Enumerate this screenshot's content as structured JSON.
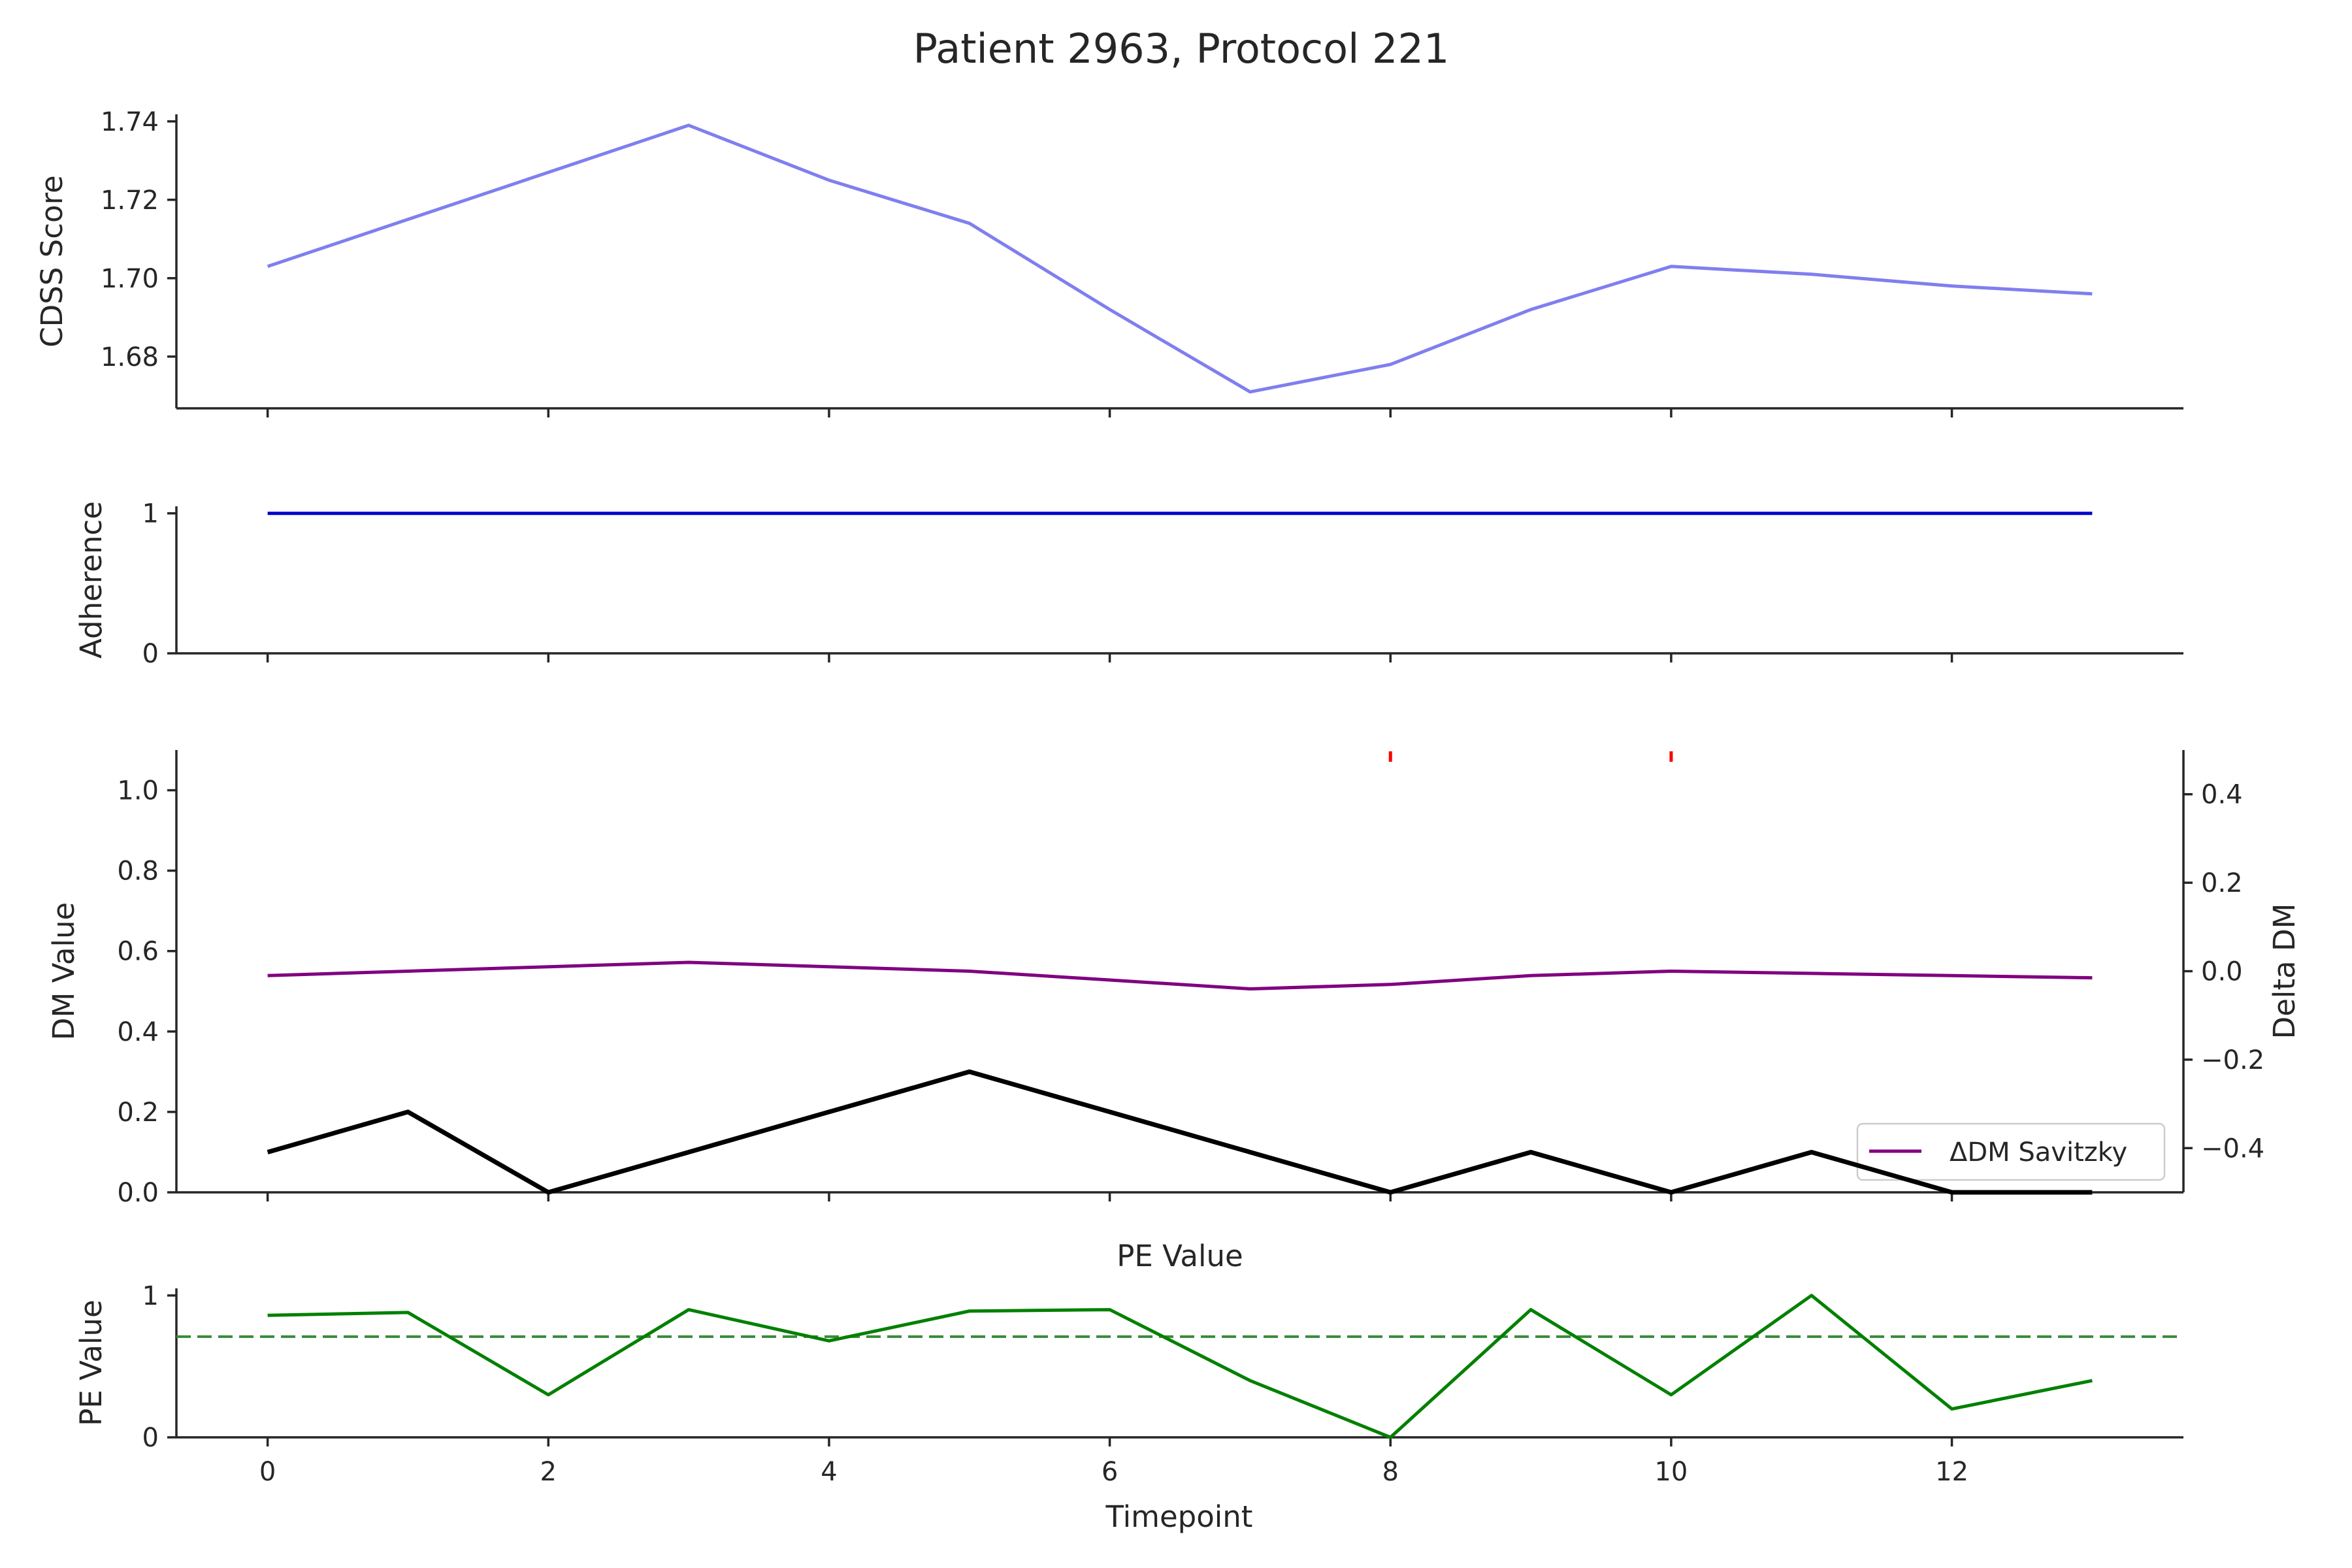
{
  "chart_data": {
    "title": "Patient 2963, Protocol 221",
    "type": "line",
    "x": [
      0,
      1,
      2,
      3,
      4,
      5,
      6,
      7,
      8,
      9,
      10,
      11,
      12,
      13
    ],
    "xlabel": "Timepoint",
    "xlim": [
      -0.65,
      13.65
    ],
    "xticks": [
      0,
      2,
      4,
      6,
      8,
      10,
      12
    ],
    "panels": [
      {
        "ylabel": "CDSS Score",
        "ylim": [
          1.6668,
          1.7418
        ],
        "yticks": [
          1.68,
          1.7,
          1.72,
          1.74
        ],
        "ytick_labels": [
          "1.68",
          "1.70",
          "1.72",
          "1.74"
        ],
        "series": [
          {
            "color": "#7f7fef",
            "values": [
              1.703,
              1.715,
              1.727,
              1.739,
              1.725,
              1.714,
              1.692,
              1.671,
              1.678,
              1.692,
              1.703,
              1.701,
              1.698,
              1.696
            ]
          }
        ]
      },
      {
        "ylabel": "Adherence",
        "ylim": [
          0,
          1.05
        ],
        "yticks": [
          0,
          1
        ],
        "ytick_labels": [
          "0",
          "1"
        ],
        "series": [
          {
            "color": "#0000cc",
            "values": [
              1,
              1,
              1,
              1,
              1,
              1,
              1,
              1,
              1,
              1,
              1,
              1,
              1,
              1
            ]
          }
        ]
      },
      {
        "ylabel": "DM Value",
        "ylim": [
          0,
          1.1
        ],
        "yticks": [
          0,
          0.2,
          0.4,
          0.6,
          0.8,
          1.0
        ],
        "ytick_labels": [
          "0.0",
          "0.2",
          "0.4",
          "0.6",
          "0.8",
          "1.0"
        ],
        "series": [
          {
            "color": "#000000",
            "values": [
              0.1,
              0.2,
              0.0,
              0.1,
              0.2,
              0.3,
              0.2,
              0.1,
              0.0,
              0.1,
              0.0,
              0.1,
              0.0,
              0.0
            ]
          }
        ],
        "markers": {
          "color": "#ff0000",
          "x": [
            8,
            10
          ]
        },
        "secondary": {
          "ylabel": "Delta DM",
          "ylim": [
            -0.5,
            0.5
          ],
          "yticks": [
            -0.4,
            -0.2,
            0.0,
            0.2,
            0.4
          ],
          "ytick_labels": [
            "−0.4",
            "−0.2",
            "0.0",
            "0.2",
            "0.4"
          ],
          "series": [
            {
              "name": "ΔDM Savitzky",
              "color": "#800080",
              "values": [
                -0.01,
                0.0,
                0.01,
                0.02,
                0.01,
                0.0,
                -0.02,
                -0.04,
                -0.03,
                -0.01,
                0.0,
                -0.005,
                -0.01,
                -0.015
              ]
            }
          ],
          "legend": "bottom-right"
        }
      },
      {
        "title": "PE Value",
        "ylabel": "PE Value",
        "ylim": [
          0,
          1.05
        ],
        "yticks": [
          0,
          1
        ],
        "ytick_labels": [
          "0",
          "1"
        ],
        "series": [
          {
            "color": "#008000",
            "values": [
              0.86,
              0.88,
              0.3,
              0.9,
              0.68,
              0.89,
              0.9,
              0.4,
              0.0,
              0.9,
              0.3,
              1.0,
              0.2,
              0.4
            ]
          }
        ],
        "threshold": {
          "value": 0.71,
          "color": "#3a8a3a",
          "style": "dashed"
        }
      }
    ]
  }
}
